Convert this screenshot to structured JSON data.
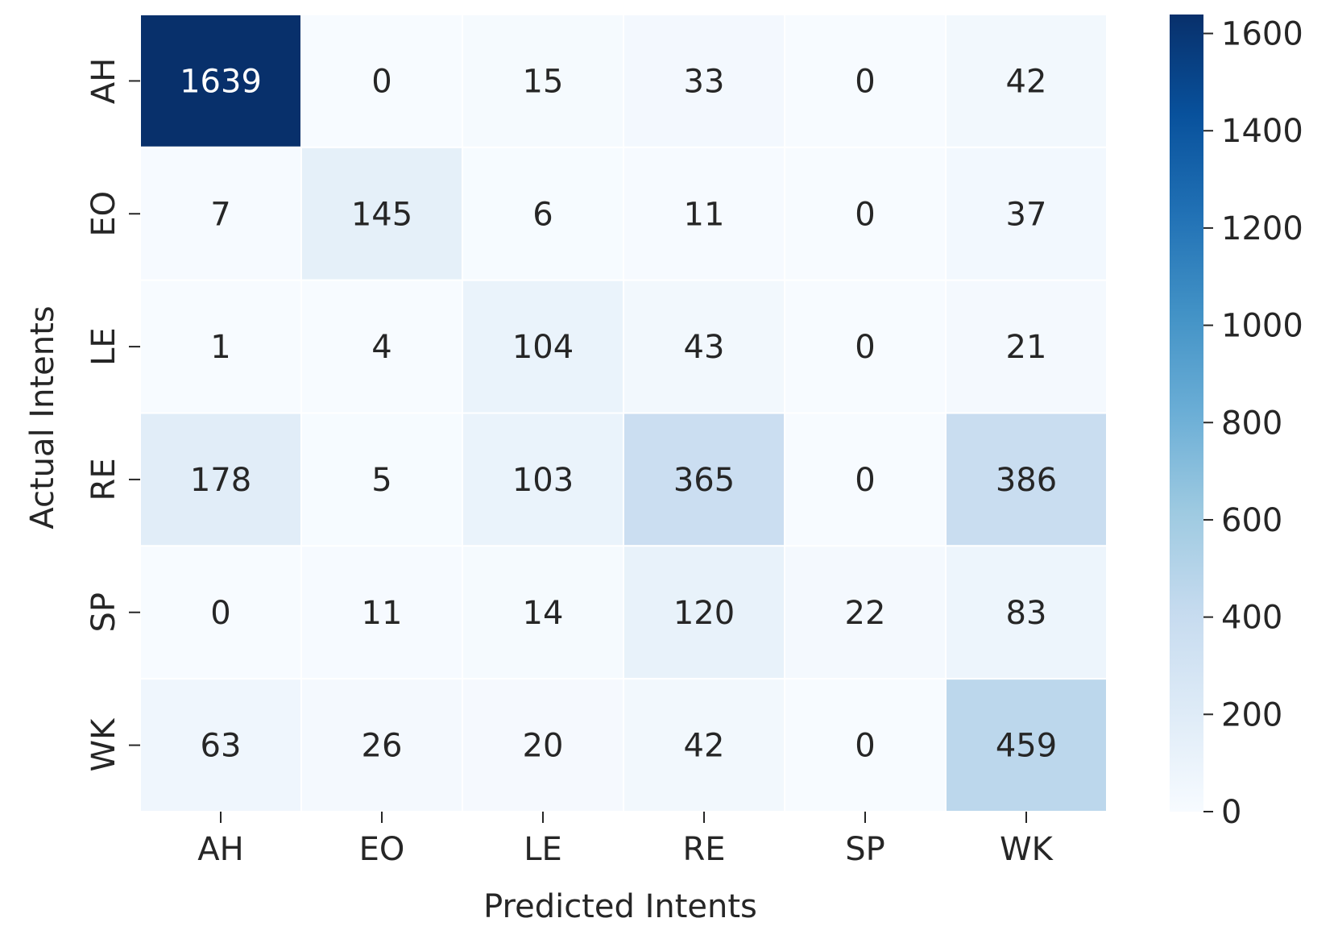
{
  "chart_data": {
    "type": "heatmap",
    "title": "",
    "xlabel": "Predicted Intents",
    "ylabel": "Actual Intents",
    "x_categories": [
      "AH",
      "EO",
      "LE",
      "RE",
      "SP",
      "WK"
    ],
    "y_categories": [
      "AH",
      "EO",
      "LE",
      "RE",
      "SP",
      "WK"
    ],
    "values": [
      [
        1639,
        0,
        15,
        33,
        0,
        42
      ],
      [
        7,
        145,
        6,
        11,
        0,
        37
      ],
      [
        1,
        4,
        104,
        43,
        0,
        21
      ],
      [
        178,
        5,
        103,
        365,
        0,
        386
      ],
      [
        0,
        11,
        14,
        120,
        22,
        83
      ],
      [
        63,
        26,
        20,
        42,
        0,
        459
      ]
    ],
    "colormap": "Blues",
    "colormap_stops": [
      "#f7fbff",
      "#deebf7",
      "#c6dbef",
      "#9ecae1",
      "#6baed6",
      "#4292c6",
      "#2171b5",
      "#08519c",
      "#08306b"
    ],
    "vmin": 0,
    "vmax": 1639,
    "colorbar_ticks": [
      0,
      200,
      400,
      600,
      800,
      1000,
      1200,
      1400,
      1600
    ],
    "grid": false
  }
}
